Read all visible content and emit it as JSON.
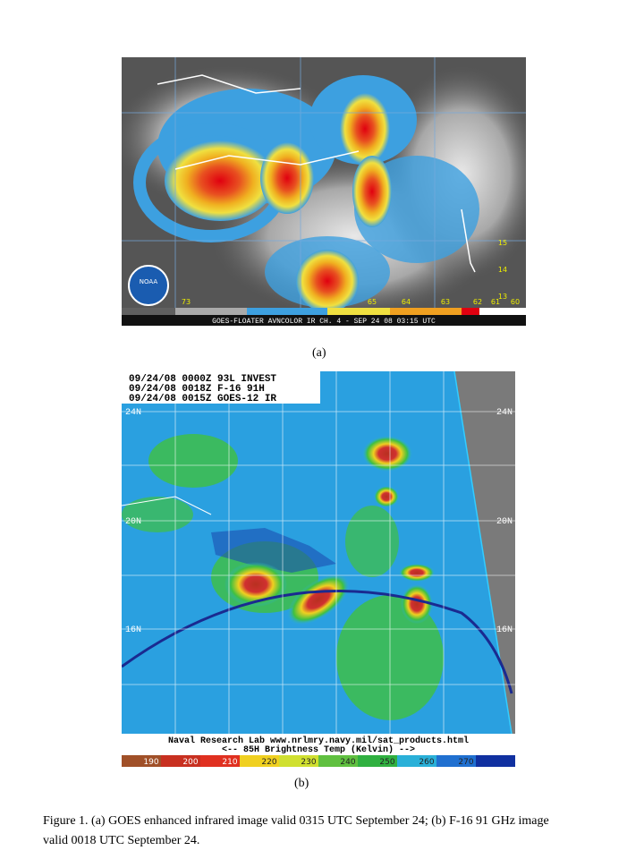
{
  "figure_a": {
    "label": "(a)",
    "logo": "NOAA",
    "banner": "GOES-FLOATER AVNCOLOR IR CH. 4 - SEP 24 08 03:15 UTC",
    "longitude_labels": [
      "73",
      "65",
      "64",
      "63",
      "62",
      "61",
      "60"
    ],
    "latitude_labels": [
      "15",
      "14",
      "13"
    ]
  },
  "figure_b": {
    "label": "(b)",
    "header": [
      "09/24/08 0000Z 93L INVEST",
      "09/24/08 0018Z F-16 91H",
      "09/24/08 0015Z GOES-12 IR"
    ],
    "latitude_labels_left": [
      "24N",
      "20N",
      "16N"
    ],
    "latitude_labels_right": [
      "24N",
      "20N",
      "16N"
    ],
    "footer": [
      "Naval Research Lab www.nrlmry.navy.mil/sat_products.html",
      "<-- 85H Brightness Temp (Kelvin) -->"
    ],
    "colorbar_labels": [
      "190",
      "200",
      "210",
      "220",
      "230",
      "240",
      "250",
      "260",
      "270"
    ]
  },
  "caption": [
    "Figure 1.  (a) GOES enhanced infrared image valid 0315 UTC September 24; (b) F-16 91 GHz image",
    "valid 0018 UTC September 24."
  ]
}
